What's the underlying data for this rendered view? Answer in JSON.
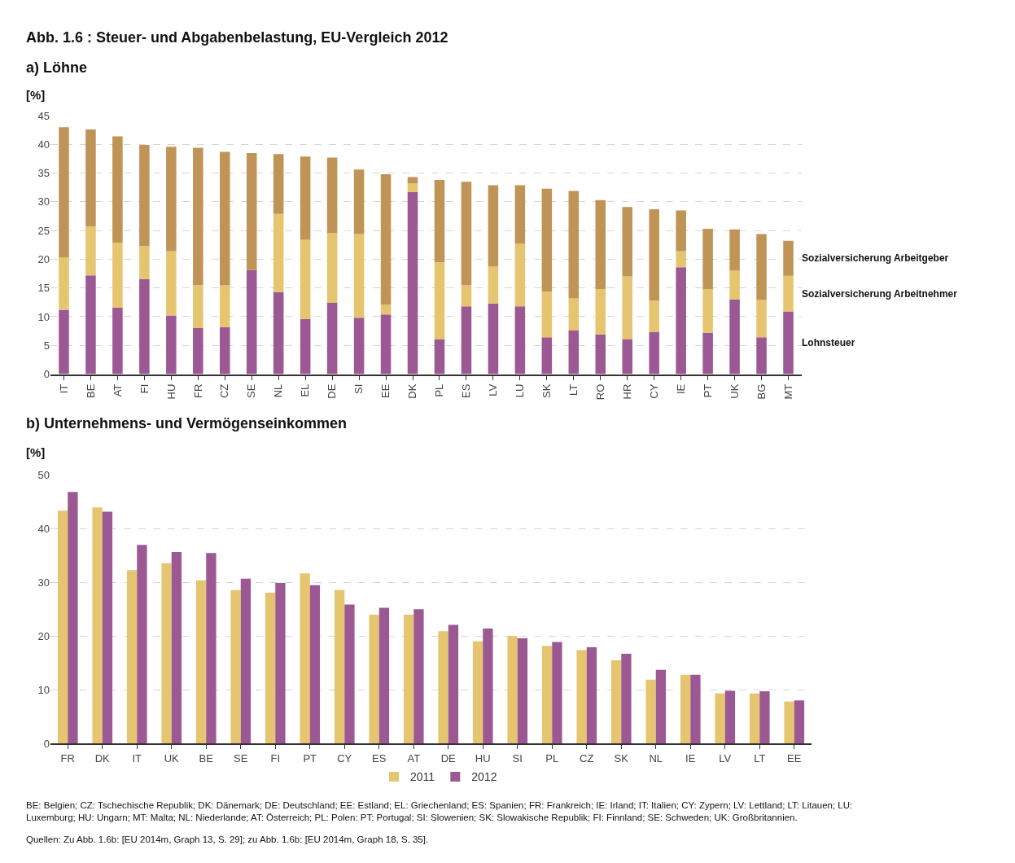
{
  "chart_data": [
    {
      "type": "bar",
      "title": "Abb. 1.6 : Steuer- und Abgabenbelastung, EU-Vergleich 2012",
      "subtitle": "a) Löhne",
      "ylabel": "[%]",
      "stacked": true,
      "categories": [
        "IT",
        "BE",
        "AT",
        "FI",
        "HU",
        "FR",
        "CZ",
        "SE",
        "NL",
        "EL",
        "DE",
        "SI",
        "EE",
        "DK",
        "PL",
        "ES",
        "LV",
        "LU",
        "SK",
        "LT",
        "RO",
        "HR",
        "CY",
        "IE",
        "PT",
        "UK",
        "BG",
        "MT"
      ],
      "series": [
        {
          "name": "Lohnsteuer",
          "color": "#9b5893",
          "values": [
            11.2,
            17.2,
            11.6,
            16.5,
            10.2,
            8.0,
            8.2,
            18.1,
            14.3,
            9.6,
            12.4,
            9.8,
            10.4,
            31.7,
            6.1,
            11.8,
            12.3,
            11.8,
            6.4,
            7.6,
            6.9,
            6.1,
            7.3,
            18.6,
            7.2,
            13.0,
            6.4,
            10.9
          ]
        },
        {
          "name": "Sozialversicherung Arbeitnehmer",
          "color": "#e5c56f",
          "values": [
            9.1,
            8.5,
            11.3,
            5.8,
            11.2,
            7.5,
            7.3,
            0,
            13.6,
            13.8,
            12.2,
            14.6,
            1.7,
            1.5,
            13.4,
            3.7,
            6.4,
            10.9,
            8.0,
            5.6,
            7.9,
            10.9,
            5.5,
            2.8,
            7.6,
            5.0,
            6.5,
            6.2
          ]
        },
        {
          "name": "Sozialversicherung Arbeitgeber",
          "color": "#bf9456",
          "values": [
            22.7,
            16.9,
            18.5,
            17.6,
            18.2,
            23.9,
            23.2,
            20.4,
            10.4,
            14.5,
            13.1,
            11.2,
            22.7,
            1.1,
            14.3,
            18.0,
            14.2,
            10.2,
            17.9,
            18.7,
            15.5,
            12.1,
            15.9,
            7.1,
            10.5,
            7.2,
            11.5,
            6.1
          ]
        }
      ],
      "ylim": [
        0,
        45
      ],
      "yticks": [
        0,
        5,
        10,
        15,
        20,
        25,
        30,
        35,
        40,
        45
      ],
      "grid": "y",
      "legend": false
    },
    {
      "type": "bar",
      "title": "b) Unternehmens- und Vermögenseinkommen",
      "ylabel": "[%]",
      "categories": [
        "FR",
        "DK",
        "IT",
        "UK",
        "BE",
        "SE",
        "FI",
        "PT",
        "CY",
        "ES",
        "AT",
        "DE",
        "HU",
        "SI",
        "PL",
        "CZ",
        "SK",
        "NL",
        "IE",
        "LV",
        "LT",
        "EE"
      ],
      "series": [
        {
          "name": "2011",
          "color": "#e5c56f",
          "values": [
            43.4,
            44.0,
            32.3,
            33.6,
            30.4,
            28.6,
            28.1,
            31.7,
            28.6,
            24.0,
            24.0,
            20.9,
            19.0,
            20.0,
            18.2,
            17.4,
            15.5,
            11.9,
            12.8,
            9.3,
            9.3,
            7.8
          ]
        },
        {
          "name": "2012",
          "color": "#9b5893",
          "values": [
            46.9,
            43.2,
            37.0,
            35.7,
            35.5,
            30.7,
            29.9,
            29.5,
            25.9,
            25.3,
            25.0,
            22.1,
            21.4,
            19.6,
            18.9,
            17.9,
            16.7,
            13.7,
            12.8,
            9.8,
            9.7,
            8.0
          ]
        }
      ],
      "ylim": [
        0,
        50
      ],
      "yticks": [
        0,
        10,
        20,
        30,
        40,
        50
      ],
      "grid": "y",
      "legend": "bottom",
      "annotations": [
        "BE: Belgien; CZ: Tschechische Republik; DK: Dänemark; DE: Deutschland; EE: Estland; EL: Griechenland; ES: Spanien; FR: Frankreich; IE: Irland; IT: Italien; CY: Zypern; LV: Lettland; LT: Litauen; LU: Luxemburg; HU: Ungarn; MT: Malta; NL: Niederlande; AT: Österreich; PL: Polen: PT: Portugal; SI: Slowenien; SK: Slowakische Republik; FI: Finnland; SE: Schweden; UK: Großbritannien.",
        "Quellen: Zu Abb. 1.6b: [EU 2014m, Graph 13, S. 29]; zu Abb. 1.6b: [EU 2014m, Graph 18, S. 35]."
      ]
    }
  ]
}
